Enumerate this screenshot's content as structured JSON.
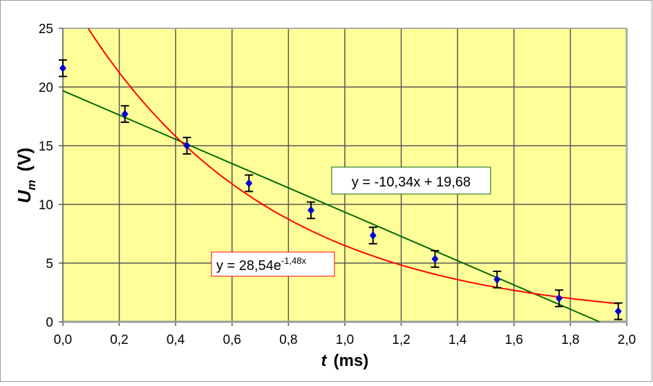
{
  "chart_data": {
    "type": "scatter",
    "xlabel": {
      "main": "t",
      "unit": "(ms)"
    },
    "ylabel": {
      "main": "U",
      "sub": "m",
      "unit": "(V)"
    },
    "xlim": [
      0,
      2.0
    ],
    "ylim": [
      0,
      25
    ],
    "xticks": [
      "0,0",
      "0,2",
      "0,4",
      "0,6",
      "0,8",
      "1,0",
      "1,2",
      "1,4",
      "1,6",
      "1,8",
      "2,0"
    ],
    "yticks": [
      "0",
      "5",
      "10",
      "15",
      "20",
      "25"
    ],
    "grid": true,
    "background": "#FFFF99",
    "series": [
      {
        "x": [
          0.0,
          0.22,
          0.44,
          0.66,
          0.88,
          1.1,
          1.32,
          1.54,
          1.76,
          1.97
        ],
        "y": [
          21.6,
          17.7,
          15.0,
          11.8,
          9.5,
          7.35,
          5.35,
          3.6,
          2.0,
          0.9
        ],
        "error": 0.7,
        "color": "#0000CC"
      }
    ],
    "trendlines": [
      {
        "type": "linear",
        "slope": -10.34,
        "intercept": 19.68,
        "color": "#006600",
        "label": "y = -10,34x + 19,68"
      },
      {
        "type": "exponential",
        "a": 28.54,
        "b": -1.48,
        "color": "#FF0000",
        "label_base": "y = 28,54e",
        "label_exp": "-1,48x"
      }
    ]
  }
}
